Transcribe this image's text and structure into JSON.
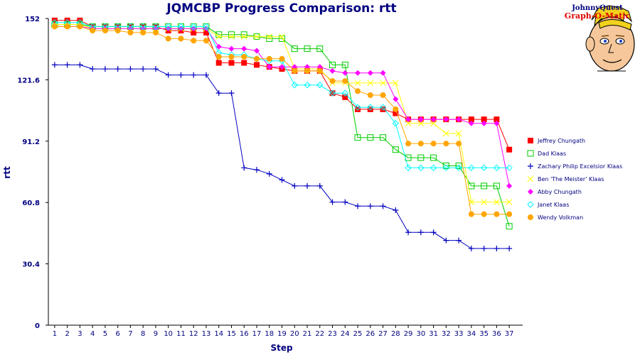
{
  "chart_data": {
    "type": "line",
    "title": "JQMCBP Progress Comparison: rtt",
    "xlabel": "Step",
    "ylabel": "rtt",
    "ylim": [
      0,
      152
    ],
    "yticks": [
      "0",
      "30.4",
      "60.8",
      "91.2",
      "121.6",
      "152"
    ],
    "x": [
      1,
      2,
      3,
      4,
      5,
      6,
      7,
      8,
      9,
      10,
      11,
      12,
      13,
      14,
      15,
      16,
      17,
      18,
      19,
      20,
      21,
      22,
      23,
      24,
      25,
      26,
      27,
      28,
      29,
      30,
      31,
      32,
      33,
      34,
      35,
      36,
      37
    ],
    "legend_position": "right",
    "series": [
      {
        "name": "Jeffrey Chungath",
        "color": "#ff0000",
        "marker": "square-filled",
        "values": [
          151,
          151,
          151,
          148,
          148,
          148,
          148,
          148,
          148,
          146,
          146,
          145,
          145,
          130,
          130,
          130,
          129,
          128,
          127,
          126,
          126,
          126,
          115,
          113,
          107,
          107,
          107,
          105,
          102,
          102,
          102,
          102,
          102,
          102,
          102,
          102,
          87
        ]
      },
      {
        "name": "Dad Klaas",
        "color": "#00cc00",
        "marker": "square-open",
        "values": [
          149,
          149,
          149,
          148,
          148,
          148,
          148,
          148,
          148,
          148,
          148,
          148,
          148,
          144,
          144,
          144,
          143,
          142,
          142,
          137,
          137,
          137,
          129,
          129,
          93,
          93,
          93,
          87,
          83,
          83,
          83,
          79,
          79,
          69,
          69,
          69,
          49
        ]
      },
      {
        "name": "Zachary Philip Excelsior Klaas",
        "color": "#0000c0",
        "marker": "plus",
        "values": [
          129,
          129,
          129,
          127,
          127,
          127,
          127,
          127,
          127,
          124,
          124,
          124,
          124,
          115,
          115,
          78,
          77,
          75,
          72,
          69,
          69,
          69,
          61,
          61,
          59,
          59,
          59,
          57,
          46,
          46,
          46,
          42,
          42,
          38,
          38,
          38,
          38
        ]
      },
      {
        "name": "Ben 'The Meister' Klaas",
        "color": "#ffff00",
        "marker": "x",
        "values": [
          149,
          149,
          149,
          147,
          147,
          147,
          147,
          147,
          147,
          147,
          147,
          147,
          147,
          143,
          143,
          143,
          143,
          143,
          143,
          127,
          127,
          127,
          120,
          120,
          120,
          120,
          120,
          120,
          100,
          100,
          100,
          95,
          95,
          61,
          61,
          61,
          61
        ]
      },
      {
        "name": "Abby Chungath",
        "color": "#ff00ff",
        "marker": "diamond",
        "values": [
          148,
          148,
          148,
          147,
          147,
          147,
          147,
          147,
          147,
          147,
          147,
          147,
          147,
          138,
          137,
          137,
          136,
          128,
          128,
          128,
          128,
          128,
          126,
          125,
          125,
          125,
          125,
          112,
          102,
          102,
          102,
          102,
          102,
          100,
          100,
          100,
          69
        ]
      },
      {
        "name": "Janet Klaas",
        "color": "#00ffff",
        "marker": "diamond-open",
        "values": [
          150,
          150,
          150,
          148,
          148,
          148,
          148,
          148,
          148,
          148,
          148,
          148,
          148,
          135,
          134,
          134,
          132,
          131,
          131,
          119,
          119,
          119,
          115,
          115,
          108,
          108,
          108,
          100,
          78,
          78,
          78,
          78,
          78,
          78,
          78,
          78,
          78
        ]
      },
      {
        "name": "Wendy Volkman",
        "color": "#ffa500",
        "marker": "circle-filled",
        "values": [
          148,
          148,
          148,
          146,
          146,
          146,
          145,
          145,
          145,
          142,
          142,
          141,
          141,
          133,
          133,
          133,
          132,
          132,
          132,
          126,
          126,
          126,
          121,
          121,
          116,
          114,
          114,
          107,
          90,
          90,
          90,
          90,
          90,
          55,
          55,
          55,
          55
        ]
      }
    ]
  },
  "logo": {
    "line1": "JohnnyQuest",
    "line2": "Graph-O-Matic",
    "icon": "cartoon-boy-face-icon"
  }
}
